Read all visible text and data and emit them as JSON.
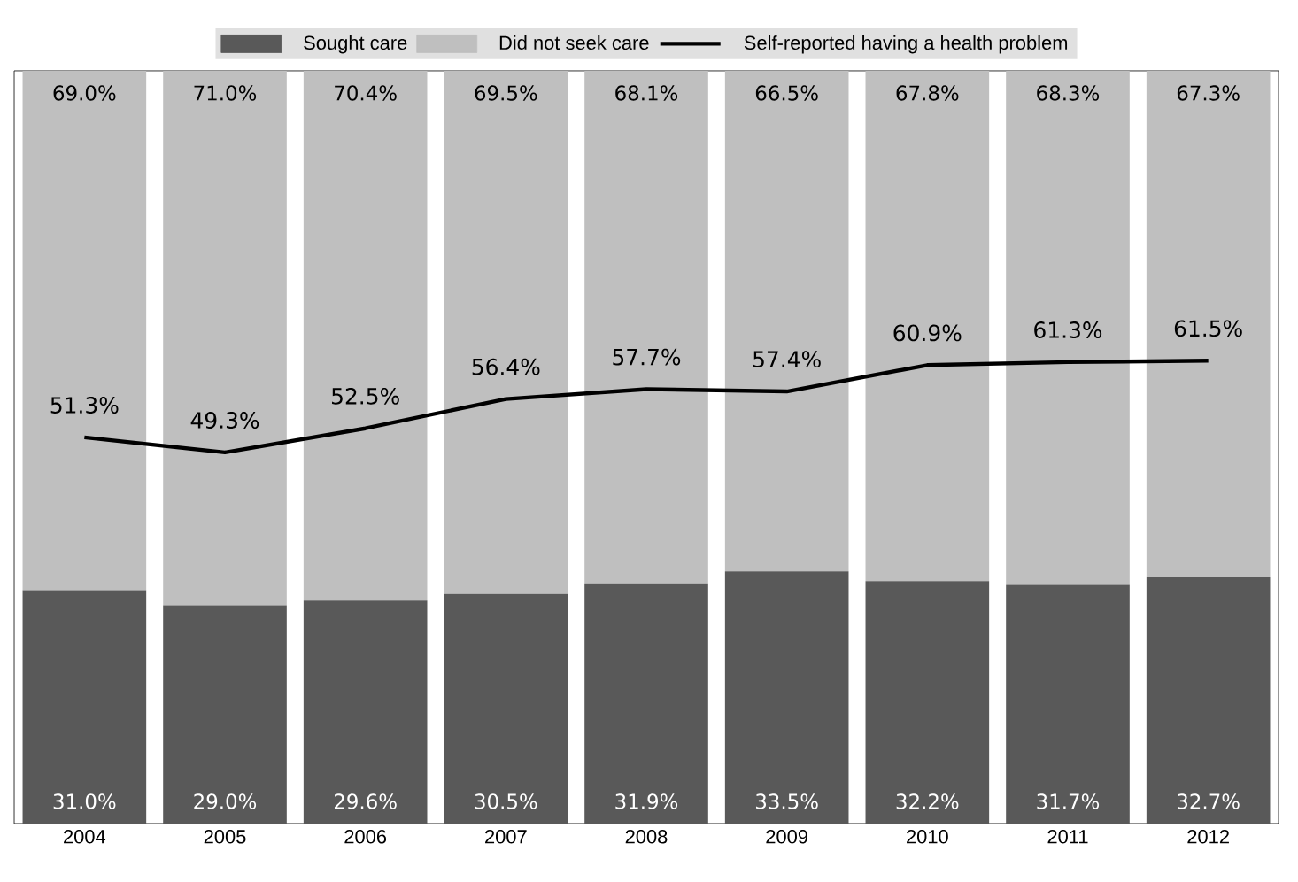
{
  "chart_data": {
    "type": "bar",
    "stacked": true,
    "legend": "top",
    "tick_labels": "x",
    "categories": [
      "2004",
      "2005",
      "2006",
      "2007",
      "2008",
      "2009",
      "2010",
      "2011",
      "2012"
    ],
    "series": [
      {
        "name": "Sought care",
        "color": "#595959",
        "values": [
          31.0,
          29.0,
          29.6,
          30.5,
          31.9,
          33.5,
          32.2,
          31.7,
          32.7
        ],
        "value_labels": [
          "31.0%",
          "29.0%",
          "29.6%",
          "30.5%",
          "31.9%",
          "33.5%",
          "32.2%",
          "31.7%",
          "32.7%"
        ]
      },
      {
        "name": "Did not seek care",
        "color": "#bfbfbf",
        "values": [
          69.0,
          71.0,
          70.4,
          69.5,
          68.1,
          66.5,
          67.8,
          68.3,
          67.3
        ],
        "value_labels": [
          "69.0%",
          "71.0%",
          "70.4%",
          "69.5%",
          "68.1%",
          "66.5%",
          "67.8%",
          "68.3%",
          "67.3%"
        ]
      },
      {
        "name": "Self-reported having a health problem",
        "type": "line",
        "color": "#000000",
        "values": [
          51.3,
          49.3,
          52.5,
          56.4,
          57.7,
          57.4,
          60.9,
          61.3,
          61.5
        ],
        "value_labels": [
          "51.3%",
          "49.3%",
          "52.5%",
          "56.4%",
          "57.7%",
          "57.4%",
          "60.9%",
          "61.3%",
          "61.5%"
        ]
      }
    ]
  }
}
